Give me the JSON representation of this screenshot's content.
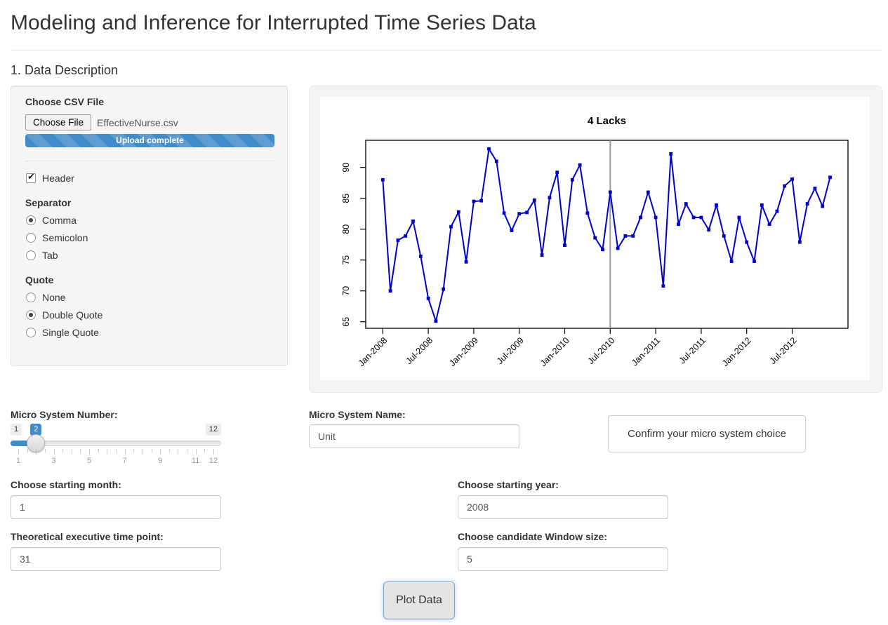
{
  "page": {
    "title": "Modeling and Inference for Interrupted Time Series Data",
    "section_heading": "1. Data Description"
  },
  "upload_panel": {
    "file_label": "Choose CSV File",
    "browse_button_label": "Choose File",
    "file_name": "EffectiveNurse.csv",
    "progress_text": "Upload complete",
    "header_checkbox": {
      "label": "Header",
      "checked": true
    },
    "separator": {
      "label": "Separator",
      "options": [
        "Comma",
        "Semicolon",
        "Tab"
      ],
      "selected": "Comma"
    },
    "quote": {
      "label": "Quote",
      "options": [
        "None",
        "Double Quote",
        "Single Quote"
      ],
      "selected": "Double Quote"
    }
  },
  "slider": {
    "label": "Micro System Number:",
    "min": "1",
    "max": "12",
    "value": "2",
    "grid_labels": [
      "1",
      "3",
      "5",
      "7",
      "9",
      "11",
      "12"
    ]
  },
  "micro_system_name": {
    "label": "Micro System Name:",
    "value": "Unit"
  },
  "confirm_button_label": "Confirm your micro system choice",
  "inputs": {
    "starting_month": {
      "label": "Choose starting month:",
      "value": "1"
    },
    "starting_year": {
      "label": "Choose starting year:",
      "value": "2008"
    },
    "time_point": {
      "label": "Theoretical executive time point:",
      "value": "31"
    },
    "window_size": {
      "label": "Choose candidate Window size:",
      "value": "5"
    }
  },
  "plot_button_label": "Plot Data",
  "colors": {
    "accent_blue": "#428bca",
    "line_blue": "#0000cc",
    "interruption_line_gray": "#999999"
  },
  "chart_data": {
    "type": "line",
    "title": "4 Lacks",
    "x_start": "Jan-2008",
    "frequency": "monthly",
    "x_tick_labels": [
      "Jan-2008",
      "Jul-2008",
      "Jan-2009",
      "Jul-2009",
      "Jan-2010",
      "Jul-2010",
      "Jan-2011",
      "Jul-2011",
      "Jan-2012",
      "Jul-2012"
    ],
    "x_tick_indices": [
      0,
      6,
      12,
      18,
      24,
      30,
      36,
      42,
      48,
      54
    ],
    "y_ticks": [
      65,
      70,
      75,
      80,
      85,
      90
    ],
    "ylim": [
      63.5,
      94.5
    ],
    "values": [
      88.0,
      70.0,
      78.2,
      78.9,
      81.3,
      75.6,
      68.8,
      65.1,
      70.3,
      80.4,
      82.8,
      74.7,
      84.5,
      84.6,
      93.0,
      91.0,
      82.6,
      79.8,
      82.5,
      82.7,
      84.7,
      75.8,
      85.1,
      89.2,
      77.4,
      88.0,
      90.4,
      82.6,
      78.6,
      76.7,
      86.0,
      76.9,
      78.9,
      78.9,
      81.9,
      86.0,
      81.9,
      70.8,
      92.2,
      80.8,
      84.1,
      81.9,
      81.9,
      79.9,
      83.9,
      78.9,
      74.8,
      81.9,
      77.9,
      74.8,
      83.9,
      80.8,
      82.9,
      87.0,
      88.1,
      77.9,
      84.1,
      86.6,
      83.7,
      88.4
    ],
    "vline_index": 30,
    "vline_label": "Jul-2010",
    "line_color": "#0000cc",
    "marker": "square",
    "legend": "none",
    "grid": "off"
  }
}
